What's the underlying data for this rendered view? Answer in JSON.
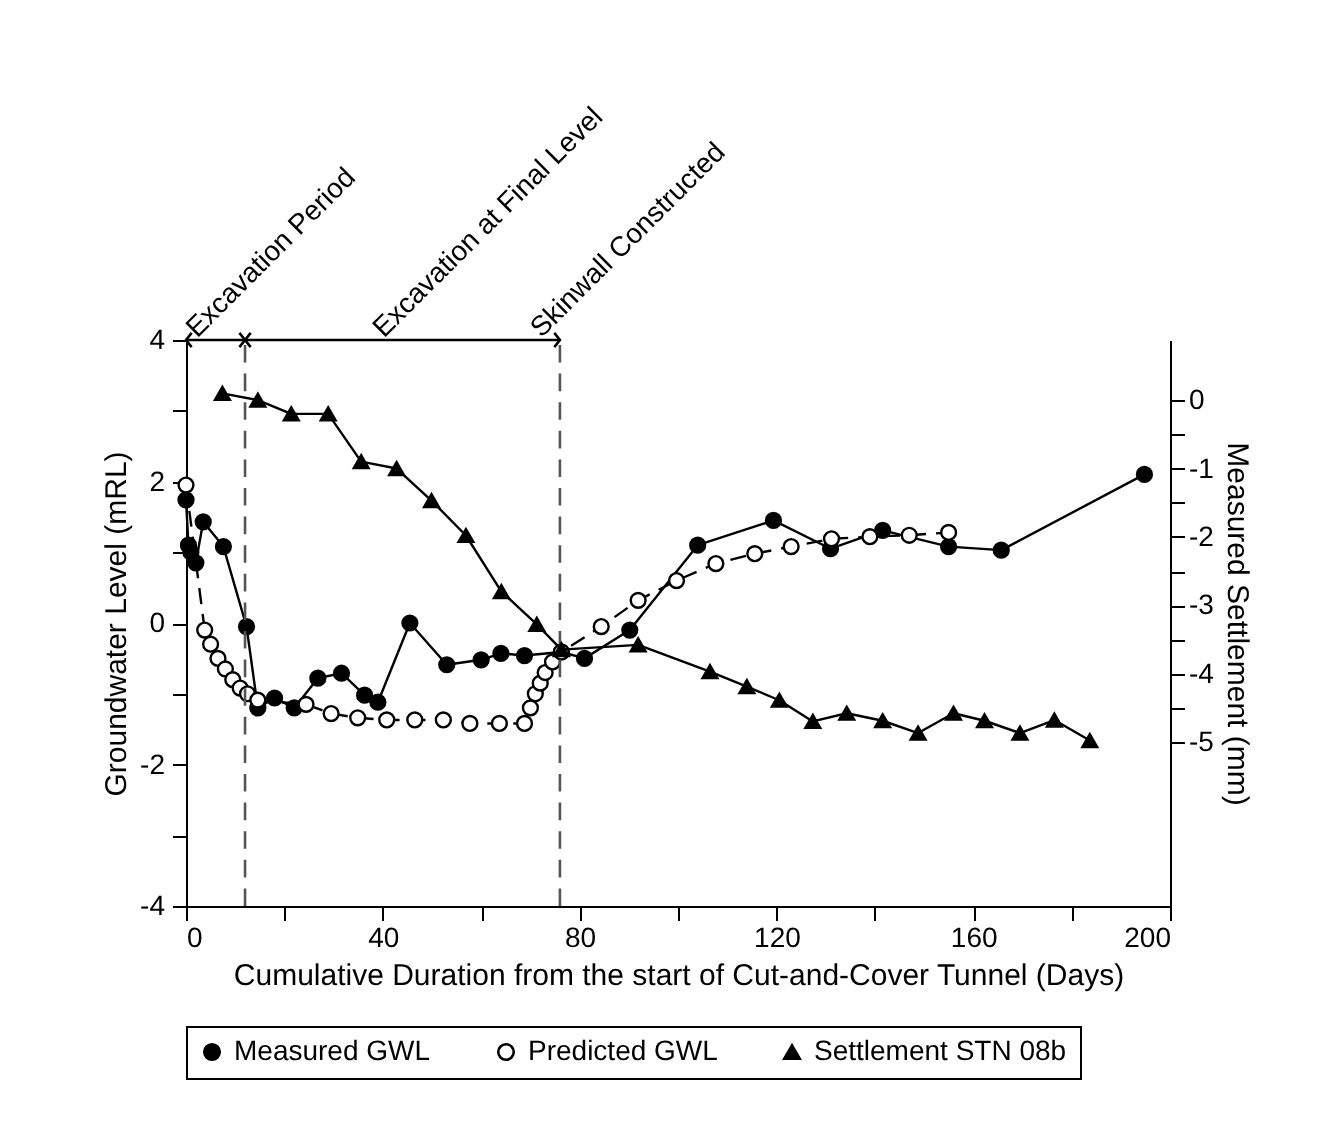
{
  "chart_data": {
    "type": "line",
    "xlabel": "Cumulative Duration from the start of Cut-and-Cover Tunnel (Days)",
    "ylabel": "Groundwater Level (mRL)",
    "y2label": "Measured Settlement (mm)",
    "xlim": [
      0,
      200
    ],
    "xticks": [
      0,
      {
        "value": 20,
        "label": null
      },
      40,
      {
        "value": 60,
        "label": null
      },
      80,
      {
        "value": 100,
        "label": null
      },
      120,
      {
        "value": 140,
        "label": null
      },
      160,
      {
        "value": 180,
        "label": null
      },
      200
    ],
    "ylim": [
      -4,
      4
    ],
    "yticks": [
      -4,
      {
        "value": -3,
        "label": null
      },
      -2,
      {
        "value": -1,
        "label": null
      },
      0,
      {
        "value": 1,
        "label": null
      },
      2,
      {
        "value": 3,
        "label": null
      },
      4
    ],
    "y2lim": [
      -7.4,
      0.88
    ],
    "y2ticks": [
      -5,
      {
        "value": -4.5,
        "label": null
      },
      -4,
      {
        "value": -3.5,
        "label": null
      },
      -3,
      {
        "value": -2.5,
        "label": null
      },
      -2,
      {
        "value": -1.5,
        "label": null
      },
      -1,
      {
        "value": -0.5,
        "label": null
      },
      0
    ],
    "grid": false,
    "legend": "bottom",
    "series": [
      {
        "name": "Measured GWL",
        "color": "#000000",
        "marker": "circle",
        "line_style": "solid",
        "x": [
          0,
          0.5,
          1,
          2,
          3.5,
          7.6,
          12.3,
          14.6,
          18,
          22,
          26.8,
          31.6,
          36.3,
          39,
          45.5,
          53,
          60,
          64,
          68.8,
          76.3,
          81,
          90.2,
          104,
          119.4,
          131,
          141.6,
          155,
          165.7,
          194.8
        ],
        "values": [
          1.74,
          1.1,
          1.0,
          0.85,
          1.43,
          1.08,
          -0.05,
          -1.2,
          -1.06,
          -1.2,
          -0.78,
          -0.71,
          -1.02,
          -1.12,
          0,
          -0.59,
          -0.52,
          -0.43,
          -0.46,
          -0.41,
          -0.5,
          -0.1,
          1.1,
          1.45,
          1.05,
          1.31,
          1.08,
          1.03,
          2.1
        ]
      },
      {
        "name": "Predicted GWL",
        "color": "#000000",
        "marker": "circle",
        "line_style": "dashed",
        "x": [
          0,
          3.8,
          5,
          6.5,
          8,
          9.5,
          11,
          12.5,
          14.6,
          24.4,
          29.5,
          34.9,
          40.8,
          46.5,
          52.3,
          57.7,
          63.7,
          68.8,
          70,
          71,
          72,
          73,
          74.5,
          76.3,
          84.4,
          91.9,
          99.7,
          107.7,
          115.6,
          123,
          131.2,
          139,
          147,
          155
        ],
        "values": [
          1.95,
          -0.1,
          -0.3,
          -0.5,
          -0.65,
          -0.8,
          -0.92,
          -1.0,
          -1.09,
          -1.15,
          -1.28,
          -1.34,
          -1.37,
          -1.37,
          -1.37,
          -1.42,
          -1.42,
          -1.42,
          -1.2,
          -1.0,
          -0.85,
          -0.7,
          -0.55,
          -0.41,
          -0.05,
          0.32,
          0.6,
          0.84,
          0.98,
          1.08,
          1.19,
          1.22,
          1.24,
          1.28
        ]
      },
      {
        "name": "Settlement STN 08b",
        "color": "#000000",
        "marker": "triangle",
        "line_style": "solid",
        "axis": "y2",
        "x": [
          7.4,
          14.6,
          21.4,
          28.9,
          35.6,
          42.8,
          49.9,
          56.9,
          64.1,
          71.3,
          76.3,
          91.9,
          106.5,
          114,
          120.6,
          127.4,
          134.3,
          141.6,
          148.8,
          156,
          162.3,
          169.5,
          176.5,
          183.7
        ],
        "values": [
          0.1,
          0,
          -0.2,
          -0.2,
          -0.9,
          -1.0,
          -1.47,
          -1.98,
          -2.8,
          -3.28,
          -3.65,
          -3.58,
          -3.97,
          -4.19,
          -4.39,
          -4.7,
          -4.58,
          -4.69,
          -4.87,
          -4.58,
          -4.69,
          -4.87,
          -4.68,
          -4.98
        ]
      }
    ],
    "ref_lines": [
      {
        "axis": "x",
        "value": 12,
        "line_style": "dashed"
      },
      {
        "axis": "x",
        "value": 76,
        "line_style": "dashed"
      }
    ],
    "annotations": [
      "Excavation Period",
      "Excavation at Final Level",
      {
        "text": "Skinwall Constructed",
        "x": 76,
        "y": 4
      }
    ]
  }
}
